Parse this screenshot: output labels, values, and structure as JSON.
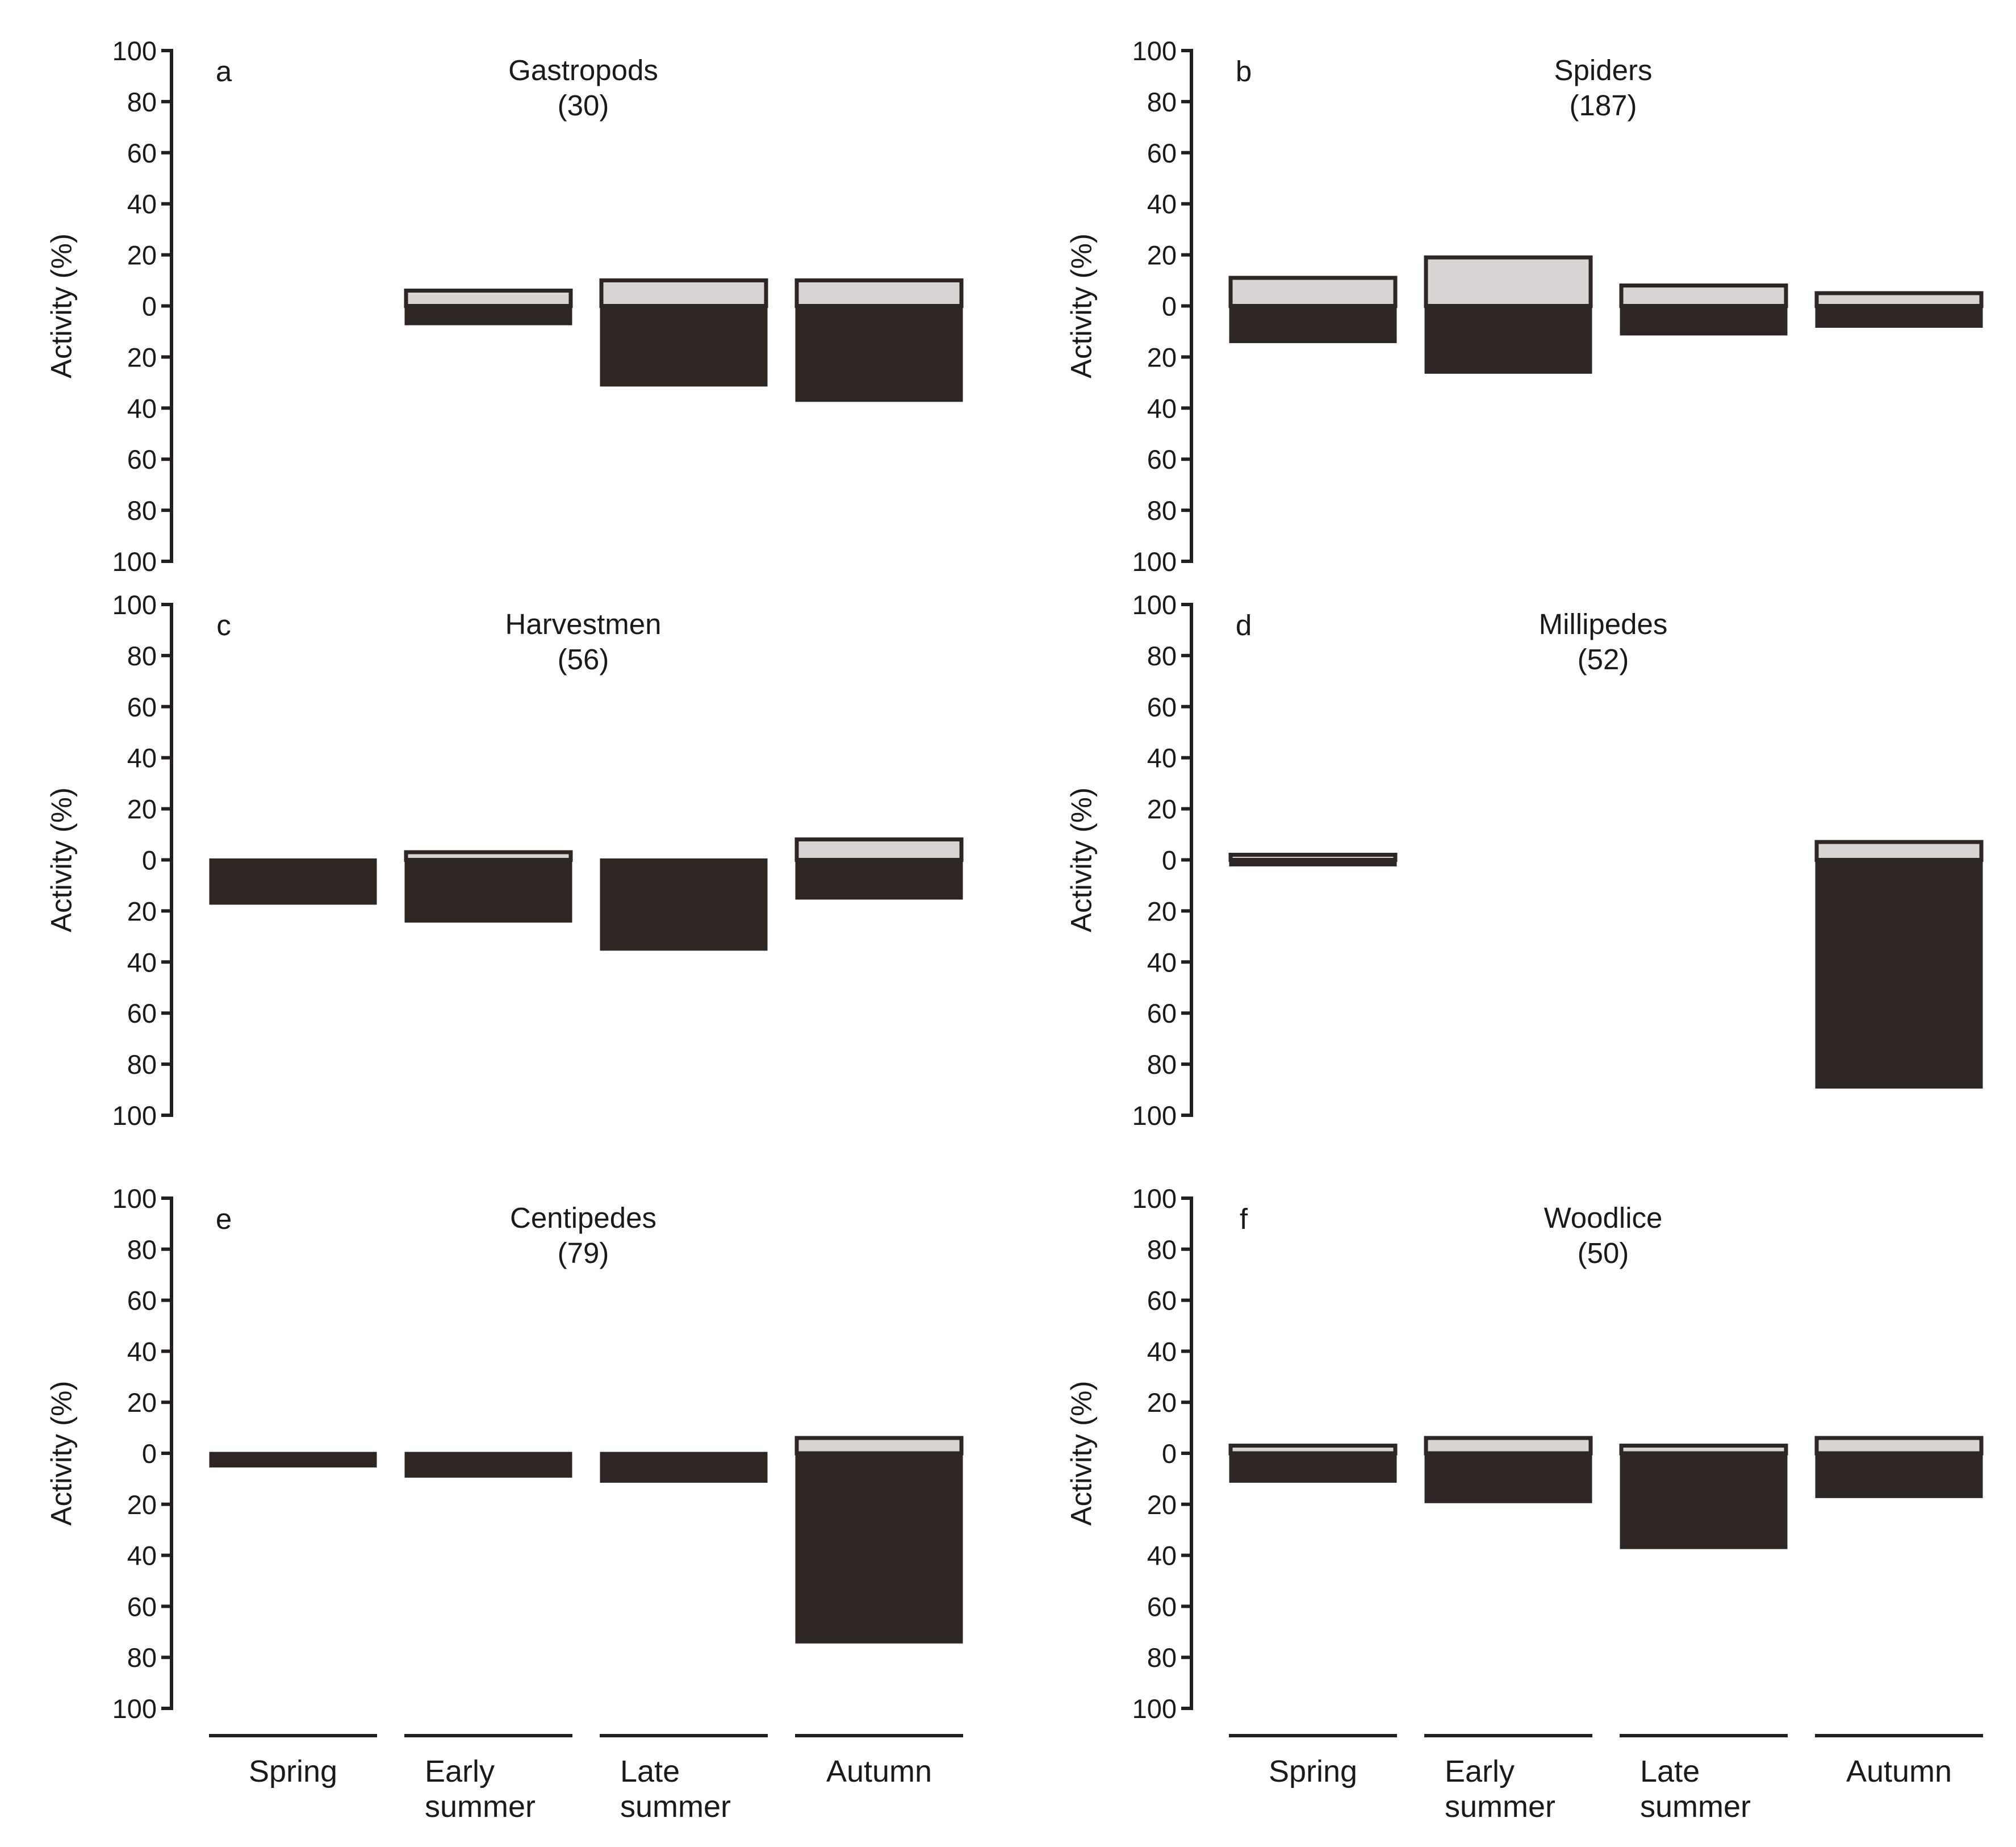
{
  "figure": {
    "y_axis_label": "Activity (%)",
    "positive_color": "#d7d4d3",
    "negative_color": "#2d2623",
    "axis_color": "#231f1c",
    "categories": [
      [
        "Spring"
      ],
      [
        "Early",
        "summer"
      ],
      [
        "Late",
        "summer"
      ],
      [
        "Autumn"
      ]
    ]
  },
  "chart_data": [
    {
      "type": "bar",
      "panel": "a",
      "title": "Gastropods",
      "subtitle": "(30)",
      "ylabel": "Activity (%)",
      "ylim": [
        -100,
        100
      ],
      "yticks": [
        100,
        80,
        60,
        40,
        20,
        0,
        20,
        40,
        60,
        80,
        100
      ],
      "categories": [
        "Spring",
        "Early summer",
        "Late summer",
        "Autumn"
      ],
      "series": [
        {
          "name": "positive",
          "values": [
            0,
            6,
            10,
            10
          ]
        },
        {
          "name": "negative",
          "values": [
            0,
            -7,
            -31,
            -37
          ]
        }
      ]
    },
    {
      "type": "bar",
      "panel": "b",
      "title": "Spiders",
      "subtitle": "(187)",
      "ylabel": "Activity (%)",
      "ylim": [
        -100,
        100
      ],
      "yticks": [
        100,
        80,
        60,
        40,
        20,
        0,
        20,
        40,
        60,
        80,
        100
      ],
      "categories": [
        "Spring",
        "Early summer",
        "Late summer",
        "Autumn"
      ],
      "series": [
        {
          "name": "positive",
          "values": [
            11,
            19,
            8,
            5
          ]
        },
        {
          "name": "negative",
          "values": [
            -14,
            -26,
            -11,
            -8
          ]
        }
      ]
    },
    {
      "type": "bar",
      "panel": "c",
      "title": "Harvestmen",
      "subtitle": "(56)",
      "ylabel": "Activity (%)",
      "ylim": [
        -100,
        100
      ],
      "yticks": [
        100,
        80,
        60,
        40,
        20,
        0,
        20,
        40,
        60,
        80,
        100
      ],
      "categories": [
        "Spring",
        "Early summer",
        "Late summer",
        "Autumn"
      ],
      "series": [
        {
          "name": "positive",
          "values": [
            0,
            3,
            0,
            8
          ]
        },
        {
          "name": "negative",
          "values": [
            -17,
            -24,
            -35,
            -15
          ]
        }
      ]
    },
    {
      "type": "bar",
      "panel": "d",
      "title": "Millipedes",
      "subtitle": "(52)",
      "ylabel": "Activity (%)",
      "ylim": [
        -100,
        100
      ],
      "yticks": [
        100,
        80,
        60,
        40,
        20,
        0,
        20,
        40,
        60,
        80,
        100
      ],
      "categories": [
        "Spring",
        "Early summer",
        "Late summer",
        "Autumn"
      ],
      "series": [
        {
          "name": "positive",
          "values": [
            2,
            0,
            0,
            7
          ]
        },
        {
          "name": "negative",
          "values": [
            -2,
            0,
            0,
            -89
          ]
        }
      ]
    },
    {
      "type": "bar",
      "panel": "e",
      "title": "Centipedes",
      "subtitle": "(79)",
      "ylabel": "Activity (%)",
      "ylim": [
        -100,
        100
      ],
      "yticks": [
        100,
        80,
        60,
        40,
        20,
        0,
        20,
        40,
        60,
        80,
        100
      ],
      "categories": [
        "Spring",
        "Early summer",
        "Late summer",
        "Autumn"
      ],
      "series": [
        {
          "name": "positive",
          "values": [
            0,
            0,
            0,
            6
          ]
        },
        {
          "name": "negative",
          "values": [
            -5,
            -9,
            -11,
            -74
          ]
        }
      ]
    },
    {
      "type": "bar",
      "panel": "f",
      "title": "Woodlice",
      "subtitle": "(50)",
      "ylabel": "Activity (%)",
      "ylim": [
        -100,
        100
      ],
      "yticks": [
        100,
        80,
        60,
        40,
        20,
        0,
        20,
        40,
        60,
        80,
        100
      ],
      "categories": [
        "Spring",
        "Early summer",
        "Late summer",
        "Autumn"
      ],
      "series": [
        {
          "name": "positive",
          "values": [
            3,
            6,
            3,
            6
          ]
        },
        {
          "name": "negative",
          "values": [
            -11,
            -19,
            -37,
            -17
          ]
        }
      ]
    }
  ]
}
